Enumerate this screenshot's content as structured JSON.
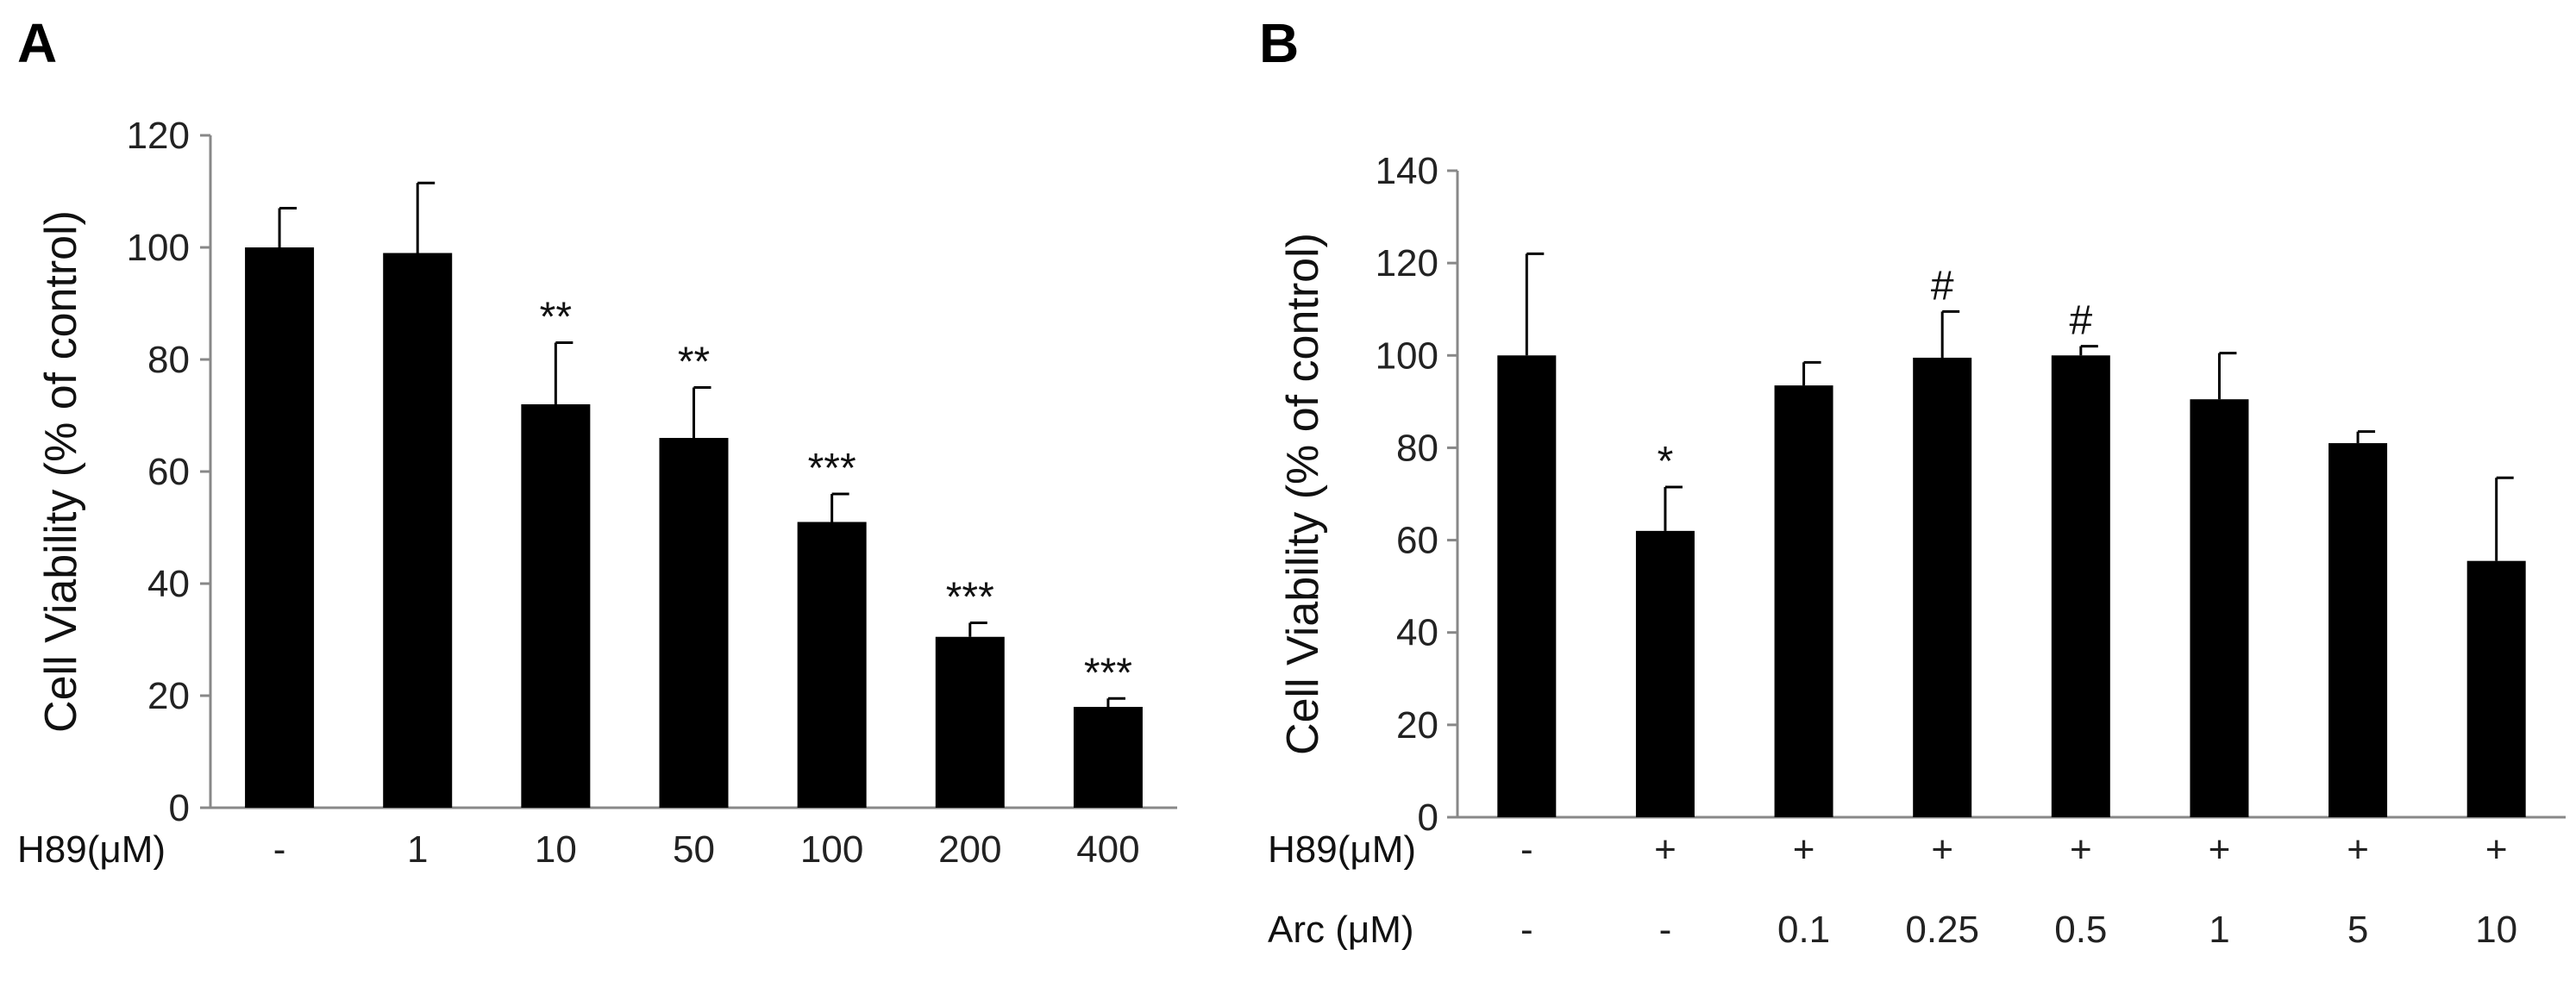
{
  "chart_data": [
    {
      "type": "bar",
      "panel": "A",
      "ylabel": "Cell Viability (% of control)",
      "ylim": [
        0,
        120
      ],
      "yticks": [
        0,
        20,
        40,
        60,
        80,
        100,
        120
      ],
      "row_labels": [
        "H89(μM)"
      ],
      "categories": [
        [
          "-"
        ],
        [
          "1"
        ],
        [
          "10"
        ],
        [
          "50"
        ],
        [
          "100"
        ],
        [
          "200"
        ],
        [
          "400"
        ]
      ],
      "values": [
        100,
        99,
        72,
        66,
        51,
        30.5,
        18
      ],
      "errors": [
        7,
        12.5,
        11,
        9,
        5,
        2.5,
        1.5
      ],
      "annotations": [
        "",
        "",
        "**",
        "**",
        "***",
        "***",
        "***"
      ],
      "color": "#000000"
    },
    {
      "type": "bar",
      "panel": "B",
      "ylabel": "Cell Viability (% of control)",
      "ylim": [
        0,
        140
      ],
      "yticks": [
        0,
        20,
        40,
        60,
        80,
        100,
        120,
        140
      ],
      "row_labels": [
        "H89(μM)",
        "Arc (μM)"
      ],
      "categories": [
        [
          "-",
          "-"
        ],
        [
          "+",
          "-"
        ],
        [
          "+",
          "0.1"
        ],
        [
          "+",
          "0.25"
        ],
        [
          "+",
          "0.5"
        ],
        [
          "+",
          "1"
        ],
        [
          "+",
          "5"
        ],
        [
          "+",
          "10"
        ]
      ],
      "values": [
        100,
        62,
        93.5,
        99.5,
        100,
        90.5,
        81,
        55.5
      ],
      "errors": [
        22,
        9.5,
        5,
        10,
        2,
        10,
        2.5,
        18
      ],
      "annotations": [
        "",
        "*",
        "",
        "#",
        "#",
        "",
        "",
        ""
      ],
      "color": "#000000"
    }
  ]
}
